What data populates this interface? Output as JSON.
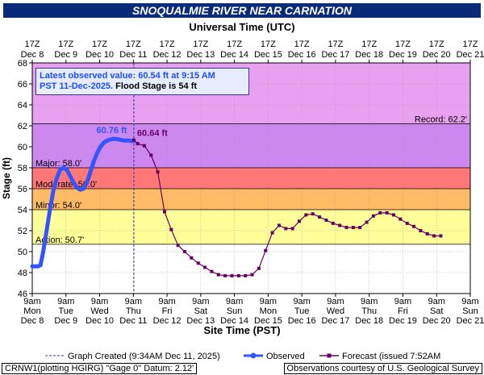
{
  "title": "SNOQUALMIE RIVER NEAR CARNATION",
  "info": {
    "line1": "Latest observed value: 60.54 ft at 9:15 AM",
    "line2_blue": "PST 11-Dec-2025.",
    "line2_black": " Flood Stage is 54 ft"
  },
  "footer": {
    "graph_created": "Graph Created (9:34AM Dec 11, 2025)",
    "observed": "Observed",
    "forecast": "Forecast (issued 7:52AM Dec 11)",
    "source": "CRNW1(plotting HGIRG) \"Gage 0\" Datum: 2.12'",
    "credit": "Observations courtesy of U.S. Geological Survey"
  },
  "chart_data": {
    "type": "line",
    "top_axis_title": "Universal Time (UTC)",
    "xlabel": "Site Time (PST)",
    "ylabel": "Stage (ft)",
    "ylim": [
      46,
      68
    ],
    "yticks": [
      46,
      48,
      50,
      52,
      54,
      56,
      58,
      60,
      62,
      64,
      66,
      68
    ],
    "xlim_days": [
      8.375,
      21.375
    ],
    "top_ticks": [
      {
        "l1": "17Z",
        "l2": "Dec 8"
      },
      {
        "l1": "17Z",
        "l2": "Dec 9"
      },
      {
        "l1": "17Z",
        "l2": "Dec 10"
      },
      {
        "l1": "17Z",
        "l2": "Dec 11"
      },
      {
        "l1": "17Z",
        "l2": "Dec 12"
      },
      {
        "l1": "17Z",
        "l2": "Dec 13"
      },
      {
        "l1": "17Z",
        "l2": "Dec 14"
      },
      {
        "l1": "17Z",
        "l2": "Dec 15"
      },
      {
        "l1": "17Z",
        "l2": "Dec 16"
      },
      {
        "l1": "17Z",
        "l2": "Dec 17"
      },
      {
        "l1": "17Z",
        "l2": "Dec 18"
      },
      {
        "l1": "17Z",
        "l2": "Dec 19"
      },
      {
        "l1": "17Z",
        "l2": "Dec 20"
      },
      {
        "l1": "17Z",
        "l2": "Dec 21"
      }
    ],
    "bottom_ticks": [
      {
        "l1": "9am",
        "l2": "Mon",
        "l3": "Dec 8"
      },
      {
        "l1": "9am",
        "l2": "Tue",
        "l3": "Dec 9"
      },
      {
        "l1": "9am",
        "l2": "Wed",
        "l3": "Dec 10"
      },
      {
        "l1": "9am",
        "l2": "Thu",
        "l3": "Dec 11"
      },
      {
        "l1": "9am",
        "l2": "Fri",
        "l3": "Dec 12"
      },
      {
        "l1": "9am",
        "l2": "Sat",
        "l3": "Dec 13"
      },
      {
        "l1": "9am",
        "l2": "Sun",
        "l3": "Dec 14"
      },
      {
        "l1": "9am",
        "l2": "Mon",
        "l3": "Dec 15"
      },
      {
        "l1": "9am",
        "l2": "Tue",
        "l3": "Dec 16"
      },
      {
        "l1": "9am",
        "l2": "Wed",
        "l3": "Dec 17"
      },
      {
        "l1": "9am",
        "l2": "Thu",
        "l3": "Dec 18"
      },
      {
        "l1": "9am",
        "l2": "Fri",
        "l3": "Dec 19"
      },
      {
        "l1": "9am",
        "l2": "Sat",
        "l3": "Dec 20"
      },
      {
        "l1": "9am",
        "l2": "Sun",
        "l3": "Dec 21"
      }
    ],
    "flood_categories": [
      {
        "name": "Record",
        "value": 62.2,
        "label": "Record: 62.2'",
        "band_to": 68,
        "color": "#e8a0f0"
      },
      {
        "name": "Major",
        "value": 58.0,
        "label": "Major: 58.0'",
        "band_to": 62.2,
        "color": "#cc88ee"
      },
      {
        "name": "Moderate",
        "value": 56.0,
        "label": "Moderate: 56.0'",
        "band_to": 58.0,
        "color": "#ff7777"
      },
      {
        "name": "Minor",
        "value": 54.0,
        "label": "Minor: 54.0'",
        "band_to": 56.0,
        "color": "#ffbb66"
      },
      {
        "name": "Action",
        "value": 50.7,
        "label": "Action: 50.7'",
        "band_to": 54.0,
        "color": "#ffff99"
      }
    ],
    "graph_created_day": 11.39,
    "observed": [
      [
        8.375,
        48.6
      ],
      [
        8.45,
        48.6
      ],
      [
        8.55,
        48.6
      ],
      [
        8.62,
        48.7
      ],
      [
        8.7,
        50.0
      ],
      [
        8.8,
        52.0
      ],
      [
        8.9,
        54.0
      ],
      [
        9.0,
        55.8
      ],
      [
        9.1,
        57.0
      ],
      [
        9.2,
        57.8
      ],
      [
        9.3,
        58.0
      ],
      [
        9.4,
        57.8
      ],
      [
        9.5,
        57.2
      ],
      [
        9.6,
        56.6
      ],
      [
        9.7,
        56.1
      ],
      [
        9.8,
        55.9
      ],
      [
        9.9,
        56.0
      ],
      [
        10.0,
        56.6
      ],
      [
        10.1,
        57.6
      ],
      [
        10.2,
        58.6
      ],
      [
        10.3,
        59.4
      ],
      [
        10.4,
        60.0
      ],
      [
        10.5,
        60.4
      ],
      [
        10.6,
        60.6
      ],
      [
        10.7,
        60.7
      ],
      [
        10.78,
        60.76
      ],
      [
        10.9,
        60.72
      ],
      [
        11.0,
        60.66
      ],
      [
        11.1,
        60.6
      ],
      [
        11.2,
        60.6
      ],
      [
        11.39,
        60.54
      ]
    ],
    "forecast": [
      [
        11.39,
        60.64
      ],
      [
        11.5,
        60.3
      ],
      [
        11.7,
        60.1
      ],
      [
        11.9,
        59.2
      ],
      [
        12.1,
        57.6
      ],
      [
        12.3,
        53.8
      ],
      [
        12.5,
        52.1
      ],
      [
        12.7,
        50.6
      ],
      [
        12.9,
        50.0
      ],
      [
        13.1,
        49.4
      ],
      [
        13.3,
        48.9
      ],
      [
        13.5,
        48.5
      ],
      [
        13.7,
        48.1
      ],
      [
        13.9,
        47.8
      ],
      [
        14.1,
        47.7
      ],
      [
        14.3,
        47.7
      ],
      [
        14.5,
        47.7
      ],
      [
        14.7,
        47.7
      ],
      [
        14.9,
        47.8
      ],
      [
        15.1,
        48.4
      ],
      [
        15.3,
        50.1
      ],
      [
        15.5,
        51.8
      ],
      [
        15.7,
        52.5
      ],
      [
        15.9,
        52.2
      ],
      [
        16.1,
        52.2
      ],
      [
        16.3,
        52.9
      ],
      [
        16.5,
        53.5
      ],
      [
        16.7,
        53.6
      ],
      [
        16.9,
        53.3
      ],
      [
        17.1,
        53.0
      ],
      [
        17.3,
        52.7
      ],
      [
        17.5,
        52.5
      ],
      [
        17.7,
        52.3
      ],
      [
        17.9,
        52.3
      ],
      [
        18.1,
        52.3
      ],
      [
        18.3,
        52.8
      ],
      [
        18.5,
        53.4
      ],
      [
        18.7,
        53.7
      ],
      [
        18.9,
        53.7
      ],
      [
        19.1,
        53.5
      ],
      [
        19.3,
        53.1
      ],
      [
        19.5,
        52.7
      ],
      [
        19.7,
        52.4
      ],
      [
        19.9,
        52.0
      ],
      [
        20.1,
        51.7
      ],
      [
        20.3,
        51.5
      ],
      [
        20.5,
        51.5
      ]
    ],
    "peak_observed_label": "60.76 ft",
    "peak_observed_at": [
      10.78,
      60.76
    ],
    "forecast_start_label": "60.64 ft",
    "forecast_start_at": [
      11.39,
      60.64
    ]
  }
}
